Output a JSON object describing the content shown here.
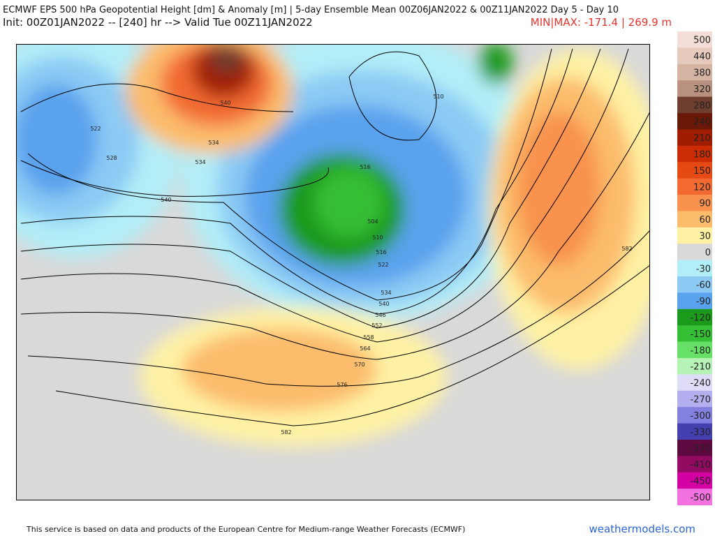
{
  "header": {
    "title": "ECMWF EPS 500 hPa Geopotential Height [dm] & Anomaly [m] | 5-day Ensemble Mean 00Z06JAN2022 & 00Z11JAN2022  Day 5 - Day 10",
    "init": "Init: 00Z01JAN2022 -- [240] hr --> Valid Tue 00Z11JAN2022",
    "minmax": "MIN|MAX: -171.4 | 269.9 m"
  },
  "colorbar": [
    {
      "label": 500,
      "color": "#f3ddd6"
    },
    {
      "label": 440,
      "color": "#e6cabd"
    },
    {
      "label": 380,
      "color": "#d5b4a4"
    },
    {
      "label": 320,
      "color": "#b8917f"
    },
    {
      "label": 280,
      "color": "#6e3e2e"
    },
    {
      "label": 240,
      "color": "#6a1808"
    },
    {
      "label": 210,
      "color": "#a01c02"
    },
    {
      "label": 180,
      "color": "#cc2c04"
    },
    {
      "label": 150,
      "color": "#e54a14"
    },
    {
      "label": 120,
      "color": "#f26a32"
    },
    {
      "label": 90,
      "color": "#f8924e"
    },
    {
      "label": 60,
      "color": "#fcbc6c"
    },
    {
      "label": 30,
      "color": "#fff2a4"
    },
    {
      "label": 0,
      "color": "#d9d9d9"
    },
    {
      "label": -30,
      "color": "#b2eef8"
    },
    {
      "label": -60,
      "color": "#8ccaf4"
    },
    {
      "label": -90,
      "color": "#5aa2ee"
    },
    {
      "label": -120,
      "color": "#1c9a1c"
    },
    {
      "label": -150,
      "color": "#34bf34"
    },
    {
      "label": -180,
      "color": "#66e066"
    },
    {
      "label": -210,
      "color": "#b6f2b6"
    },
    {
      "label": -240,
      "color": "#dedcf6"
    },
    {
      "label": -270,
      "color": "#b4b0f0"
    },
    {
      "label": -300,
      "color": "#8480e0"
    },
    {
      "label": -330,
      "color": "#4440b0"
    },
    {
      "label": -370,
      "color": "#5e0a40"
    },
    {
      "label": -410,
      "color": "#920a62"
    },
    {
      "label": -450,
      "color": "#d400a4"
    },
    {
      "label": -500,
      "color": "#f272e2"
    }
  ],
  "contour_labels": [
    522,
    528,
    534,
    534,
    540,
    540,
    510,
    504,
    510,
    516,
    522,
    534,
    540,
    546,
    552,
    558,
    564,
    570,
    576,
    582,
    582,
    516
  ],
  "footer": {
    "credit": "This service is based on data and products of the European Centre for Medium-range Weather Forecasts (ECMWF)",
    "brand": "weathermodels.com"
  }
}
